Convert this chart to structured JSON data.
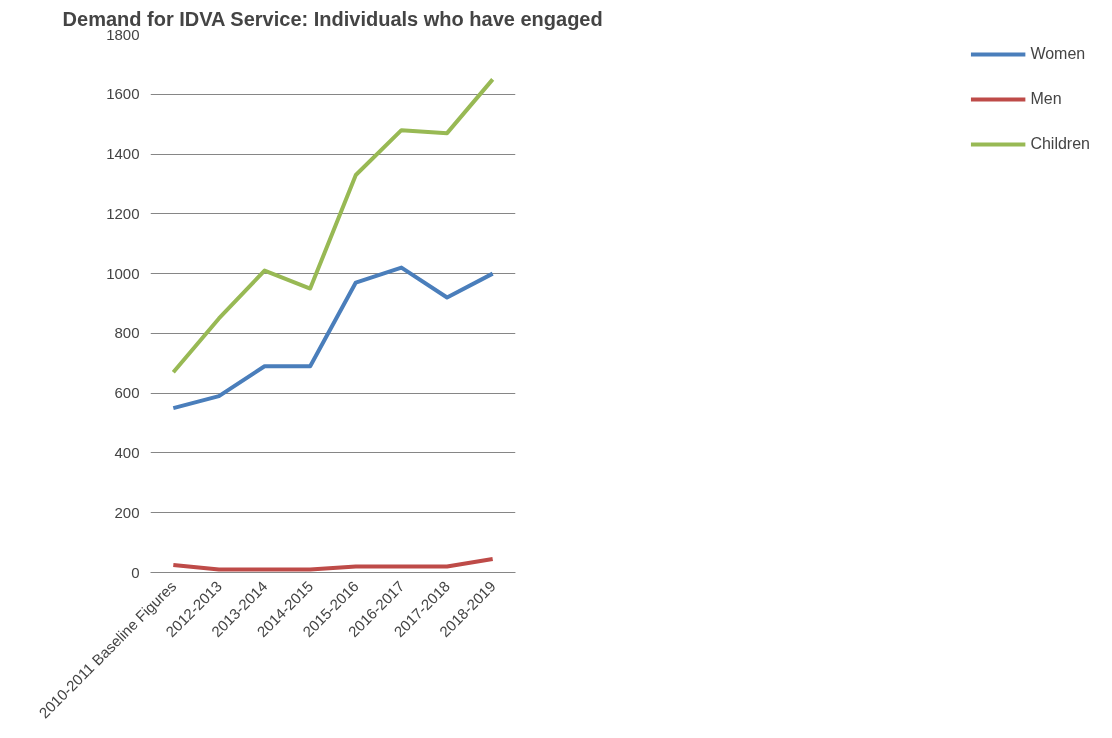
{
  "chart_data": {
    "type": "line",
    "title": "Demand for IDVA Service: Individuals who have engaged",
    "categories": [
      "2010-2011 Baseline Figures",
      "2012-2013",
      "2013-2014",
      "2014-2015",
      "2015-2016",
      "2016-2017",
      "2017-2018",
      "2018-2019"
    ],
    "series": [
      {
        "name": "Women",
        "color": "#4a7ebb",
        "values": [
          550,
          590,
          690,
          690,
          970,
          1020,
          920,
          1000
        ]
      },
      {
        "name": "Men",
        "color": "#be4b48",
        "values": [
          25,
          10,
          10,
          10,
          20,
          20,
          20,
          45
        ]
      },
      {
        "name": "Children",
        "color": "#98b954",
        "values": [
          670,
          850,
          1010,
          950,
          1330,
          1480,
          1470,
          1650
        ]
      }
    ],
    "ylim": [
      0,
      1800
    ],
    "yticks": [
      0,
      200,
      400,
      600,
      800,
      1000,
      1200,
      1400,
      1600,
      1800
    ],
    "grid": "y",
    "legend": "right",
    "marker": "none",
    "line_style": "solid"
  }
}
